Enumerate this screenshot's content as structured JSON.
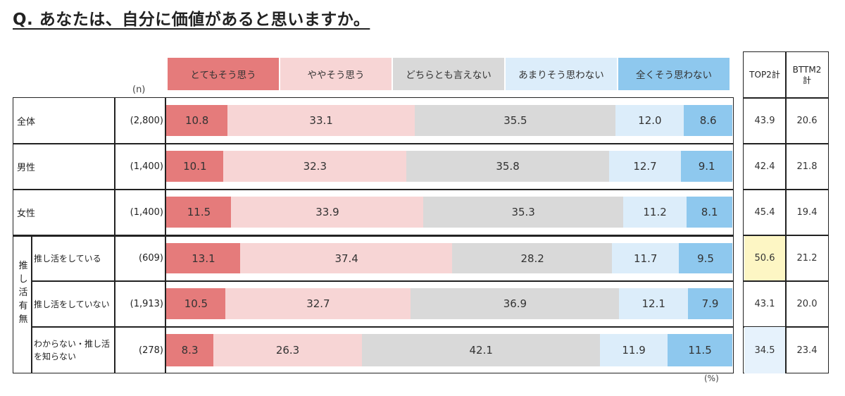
{
  "question": "Q. あなたは、自分に価値があると思いますか。",
  "n_label": "(n)",
  "pct_label": "(%)",
  "colors": [
    "#e57b7b",
    "#f7d5d5",
    "#d9d9d9",
    "#dcedfa",
    "#8ec8ee"
  ],
  "chart_data": {
    "type": "bar",
    "stacked": true,
    "orientation": "horizontal",
    "title": "Q. あなたは、自分に価値があると思いますか。",
    "xlabel": "(%)",
    "xlim": [
      0,
      100
    ],
    "legend": [
      "とてもそう思う",
      "ややそう思う",
      "どちらとも言えない",
      "あまりそう思わない",
      "全くそう思わない"
    ],
    "legend_position": "top",
    "rows": [
      {
        "label": "全体",
        "group": "",
        "n": "(2,800)",
        "values": [
          10.8,
          33.1,
          35.5,
          12.0,
          8.6
        ],
        "labels": [
          "10.8",
          "33.1",
          "35.5",
          "12.0",
          "8.6"
        ],
        "top2": "43.9",
        "bttm2": "20.6"
      },
      {
        "label": "男性",
        "group": "",
        "n": "(1,400)",
        "values": [
          10.1,
          32.3,
          35.8,
          12.7,
          9.1
        ],
        "labels": [
          "10.1",
          "32.3",
          "35.8",
          "12.7",
          "9.1"
        ],
        "top2": "42.4",
        "bttm2": "21.8"
      },
      {
        "label": "女性",
        "group": "",
        "n": "(1,400)",
        "values": [
          11.5,
          33.9,
          35.3,
          11.2,
          8.1
        ],
        "labels": [
          "11.5",
          "33.9",
          "35.3",
          "11.2",
          "8.1"
        ],
        "top2": "45.4",
        "bttm2": "19.4"
      },
      {
        "label": "推し活をしている",
        "group": "推し活有無",
        "n": "(609)",
        "values": [
          13.1,
          37.4,
          28.2,
          11.7,
          9.5
        ],
        "labels": [
          "13.1",
          "37.4",
          "28.2",
          "11.7",
          "9.5"
        ],
        "top2": "50.6",
        "bttm2": "21.2",
        "top2_highlight": "#fdf6c4"
      },
      {
        "label": "推し活をしていない",
        "group": "推し活有無",
        "n": "(1,913)",
        "values": [
          10.5,
          32.7,
          36.9,
          12.1,
          7.9
        ],
        "labels": [
          "10.5",
          "32.7",
          "36.9",
          "12.1",
          "7.9"
        ],
        "top2": "43.1",
        "bttm2": "20.0"
      },
      {
        "label": "わからない・推し活を知らない",
        "label_lines": [
          "わからない・推し活",
          "を知らない"
        ],
        "group": "推し活有無",
        "n": "(278)",
        "values": [
          8.3,
          26.3,
          42.1,
          11.9,
          11.5
        ],
        "labels": [
          "8.3",
          "26.3",
          "42.1",
          "11.9",
          "11.5"
        ],
        "top2": "34.5",
        "bttm2": "23.4",
        "top2_highlight": "#e6f2fc"
      }
    ],
    "group_label": "推し活有無",
    "summary_headers": [
      "TOP2計",
      "BTTM2計"
    ]
  }
}
